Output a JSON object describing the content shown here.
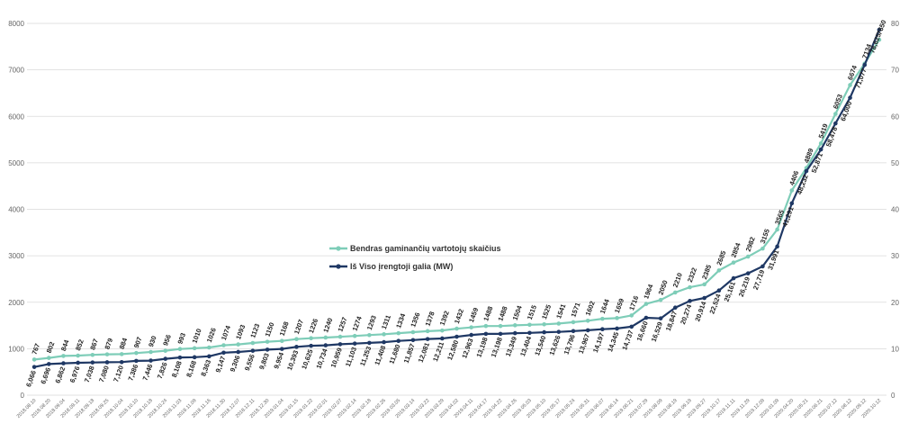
{
  "chart_data": {
    "type": "line",
    "colors": {
      "users": "#7ecdb8",
      "power": "#1f3864",
      "grid": "#d9d9d9"
    },
    "legend_position": "center",
    "grid": true,
    "categories": [
      "2018.08.10",
      "2018.08.20",
      "2018.09.04",
      "2018.09.11",
      "2018.09.18",
      "2018.09.25",
      "2018.10.04",
      "2018.10.10",
      "2018.10.18",
      "2018.10.24",
      "2018.11.03",
      "2018.11.09",
      "2018.11.16",
      "2018.11.30",
      "2018.12.07",
      "2018.12.11",
      "2018.12.30",
      "2019.01.04",
      "2019.01.15",
      "2019.01.22",
      "2019.02.01",
      "2019.02.07",
      "2019.02.14",
      "2019.02.18",
      "2019.02.26",
      "2019.03.05",
      "2019.03.14",
      "2019.03.22",
      "2019.03.29",
      "2019.04.02",
      "2019.04.11",
      "2019.04.17",
      "2019.04.22",
      "2019.04.26",
      "2019.05.03",
      "2019.05.10",
      "2019.05.17",
      "2019.05.24",
      "2019.05.31",
      "2019.06.07",
      "2019.06.14",
      "2019.06.21",
      "2019.07.29",
      "2019.08.09",
      "2019.08.19",
      "2019.09.19",
      "2019.09.27",
      "2019.10.17",
      "2019.11.11",
      "2019.11.29",
      "2019.12.09",
      "2020.01.09",
      "2020.04.20",
      "2020.05.21",
      "2020.06.21",
      "2020.07.12",
      "2020.08.12",
      "2020.09.12",
      "2020.10.12"
    ],
    "series": [
      {
        "name": "Bendras gaminančių vartotojų skaičius",
        "axis": "left",
        "values": [
          767,
          802,
          844,
          852,
          867,
          879,
          884,
          907,
          930,
          956,
          993,
          1010,
          1026,
          1074,
          1093,
          1123,
          1150,
          1168,
          1207,
          1226,
          1240,
          1257,
          1274,
          1293,
          1311,
          1334,
          1356,
          1378,
          1392,
          1432,
          1459,
          1488,
          1488,
          1504,
          1515,
          1525,
          1541,
          1571,
          1602,
          1644,
          1659,
          1716,
          1964,
          2050,
          2210,
          2322,
          2385,
          2685,
          2854,
          2982,
          3155,
          3565,
          4406,
          4889,
          5419,
          6053,
          6674,
          7134,
          7650
        ],
        "labels": [
          "767",
          "802",
          "844",
          "852",
          "867",
          "879",
          "884",
          "907",
          "930",
          "956",
          "993",
          "1010",
          "1026",
          "1074",
          "1093",
          "1123",
          "1150",
          "1168",
          "1207",
          "1226",
          "1240",
          "1257",
          "1274",
          "1293",
          "1311",
          "1334",
          "1356",
          "1378",
          "1392",
          "1432",
          "1459",
          "1488",
          "1488",
          "1504",
          "1515",
          "1525",
          "1541",
          "1571",
          "1602",
          "1644",
          "1659",
          "1716",
          "1964",
          "2050",
          "2210",
          "2322",
          "2385",
          "2685",
          "2854",
          "2982",
          "3155",
          "3565",
          "4406",
          "4889",
          "5419",
          "6053",
          "6674",
          "7134",
          "7650"
        ]
      },
      {
        "name": "Iš Viso įrengtoji galia (MW)",
        "axis": "right",
        "values": [
          6.066,
          6.696,
          6.862,
          6.976,
          7.038,
          7.08,
          7.12,
          7.386,
          7.446,
          7.826,
          8.108,
          8.168,
          8.363,
          9.147,
          9.306,
          9.556,
          9.803,
          9.954,
          10.393,
          10.625,
          10.734,
          10.959,
          11.103,
          11.253,
          11.408,
          11.68,
          11.857,
          12.081,
          12.211,
          12.58,
          12.963,
          13.198,
          13.198,
          13.349,
          13.404,
          13.54,
          13.626,
          13.796,
          13.967,
          14.197,
          14.345,
          14.737,
          16.66,
          16.529,
          18.847,
          20.274,
          20.914,
          22.524,
          25.161,
          26.219,
          27.719,
          31.991,
          41.291,
          48.232,
          52.871,
          58.478,
          64.0,
          71.077,
          78.625
        ],
        "labels": [
          "6,066",
          "6,696",
          "6,862",
          "6,976",
          "7,038",
          "7,080",
          "7,120",
          "7,386",
          "7,446",
          "7,826",
          "8,108",
          "8,168",
          "8,363",
          "9,147",
          "9,306",
          "9,556",
          "9,803",
          "9,954",
          "10,393",
          "10,625",
          "10,734",
          "10,959",
          "11,103",
          "11,253",
          "11,408",
          "11,680",
          "11,857",
          "12,081",
          "12,211",
          "12,580",
          "12,963",
          "13,198",
          "13,198",
          "13,349",
          "13,404",
          "13,540",
          "13,626",
          "13,796",
          "13,967",
          "14,197",
          "14,345",
          "14,737",
          "16,660",
          "16,529",
          "18,847",
          "20,274",
          "20,914",
          "22,524",
          "25,161",
          "26,219",
          "27,719",
          "31,991",
          "41,291",
          "48,232",
          "52,871",
          "58,478",
          "64,000",
          "71,077",
          "78,625"
        ]
      }
    ],
    "ylim": [
      0,
      8000
    ],
    "yticks": [
      0,
      1000,
      2000,
      3000,
      4000,
      5000,
      6000,
      7000,
      8000
    ],
    "y2lim": [
      0,
      80
    ],
    "y2ticks": [
      0,
      10,
      20,
      30,
      40,
      50,
      60,
      70,
      80
    ]
  }
}
